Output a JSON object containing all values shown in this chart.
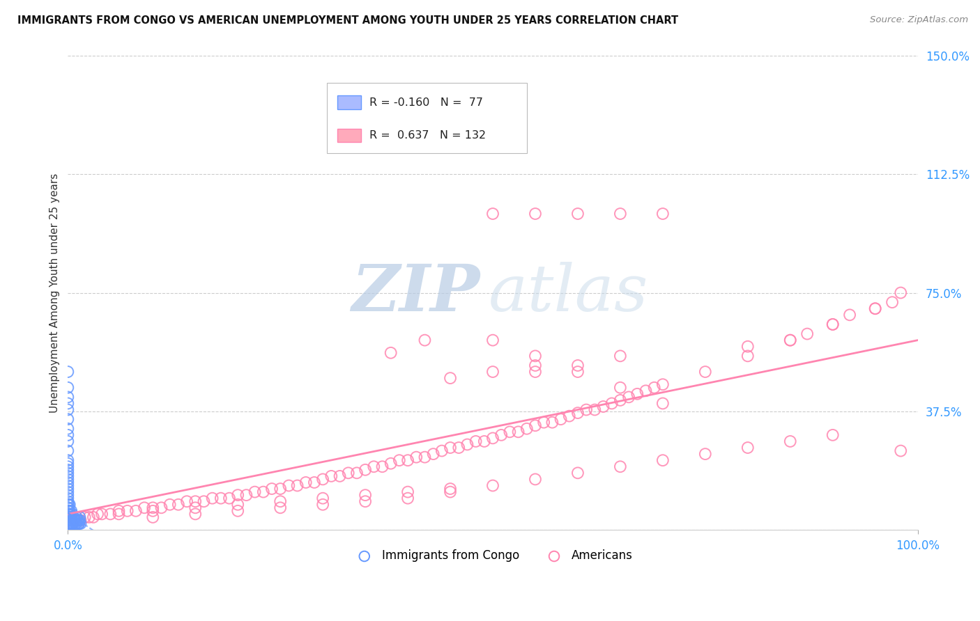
{
  "title": "IMMIGRANTS FROM CONGO VS AMERICAN UNEMPLOYMENT AMONG YOUTH UNDER 25 YEARS CORRELATION CHART",
  "source": "Source: ZipAtlas.com",
  "ylabel": "Unemployment Among Youth under 25 years",
  "xlim": [
    0.0,
    1.0
  ],
  "ylim": [
    0.0,
    1.5
  ],
  "xtick_vals": [
    0.0,
    1.0
  ],
  "xtick_labels": [
    "0.0%",
    "100.0%"
  ],
  "ytick_vals": [
    0.0,
    0.375,
    0.75,
    1.125,
    1.5
  ],
  "ytick_labels": [
    "",
    "37.5%",
    "75.0%",
    "112.5%",
    "150.0%"
  ],
  "grid_color": "#cccccc",
  "background_color": "#ffffff",
  "blue_color": "#6699ff",
  "pink_color": "#ff85b0",
  "blue_R": -0.16,
  "blue_N": 77,
  "pink_R": 0.637,
  "pink_N": 132,
  "blue_trend_x": [
    0.0,
    0.018
  ],
  "blue_trend_y": [
    0.053,
    0.02
  ],
  "pink_trend_x": [
    0.0,
    1.0
  ],
  "pink_trend_y": [
    0.05,
    0.6
  ],
  "blue_x": [
    0.0,
    0.0,
    0.0,
    0.0,
    0.0,
    0.0,
    0.0,
    0.0,
    0.0,
    0.0,
    0.0,
    0.0,
    0.0,
    0.0,
    0.0,
    0.0,
    0.0,
    0.0,
    0.0,
    0.0,
    0.0,
    0.0,
    0.0,
    0.0,
    0.0005,
    0.0005,
    0.001,
    0.001,
    0.001,
    0.001,
    0.0015,
    0.002,
    0.002,
    0.002,
    0.002,
    0.002,
    0.003,
    0.003,
    0.004,
    0.004,
    0.005,
    0.005,
    0.006,
    0.007,
    0.008,
    0.009,
    0.01,
    0.012,
    0.013,
    0.014,
    0.0,
    0.0,
    0.0,
    0.0,
    0.0,
    0.0,
    0.0,
    0.0,
    0.001,
    0.001,
    0.002,
    0.003,
    0.004,
    0.005,
    0.006,
    0.007,
    0.008,
    0.009,
    0.01,
    0.011,
    0.012,
    0.013,
    0.014,
    0.015,
    0.0,
    0.0,
    0.0
  ],
  "blue_y": [
    0.01,
    0.02,
    0.03,
    0.04,
    0.05,
    0.06,
    0.07,
    0.08,
    0.09,
    0.1,
    0.11,
    0.12,
    0.13,
    0.14,
    0.15,
    0.16,
    0.17,
    0.18,
    0.19,
    0.2,
    0.21,
    0.22,
    0.03,
    0.05,
    0.04,
    0.07,
    0.05,
    0.03,
    0.06,
    0.08,
    0.04,
    0.02,
    0.06,
    0.04,
    0.08,
    0.03,
    0.05,
    0.02,
    0.04,
    0.06,
    0.03,
    0.05,
    0.02,
    0.04,
    0.03,
    0.02,
    0.04,
    0.03,
    0.02,
    0.04,
    0.25,
    0.28,
    0.3,
    0.32,
    0.35,
    0.38,
    0.4,
    0.42,
    0.02,
    0.04,
    0.03,
    0.02,
    0.03,
    0.02,
    0.03,
    0.02,
    0.03,
    0.02,
    0.03,
    0.02,
    0.03,
    0.02,
    0.03,
    0.02,
    0.45,
    0.5,
    0.03
  ],
  "pink_x": [
    0.005,
    0.01,
    0.015,
    0.02,
    0.025,
    0.03,
    0.035,
    0.04,
    0.05,
    0.06,
    0.07,
    0.08,
    0.09,
    0.1,
    0.11,
    0.12,
    0.13,
    0.14,
    0.15,
    0.16,
    0.17,
    0.18,
    0.19,
    0.2,
    0.21,
    0.22,
    0.23,
    0.24,
    0.25,
    0.26,
    0.27,
    0.28,
    0.29,
    0.3,
    0.31,
    0.32,
    0.33,
    0.34,
    0.35,
    0.36,
    0.37,
    0.38,
    0.39,
    0.4,
    0.41,
    0.42,
    0.43,
    0.44,
    0.45,
    0.46,
    0.47,
    0.48,
    0.49,
    0.5,
    0.51,
    0.52,
    0.53,
    0.54,
    0.55,
    0.56,
    0.57,
    0.58,
    0.59,
    0.6,
    0.61,
    0.62,
    0.63,
    0.64,
    0.65,
    0.66,
    0.67,
    0.68,
    0.69,
    0.7,
    0.75,
    0.8,
    0.85,
    0.9,
    0.95,
    0.98,
    0.06,
    0.1,
    0.15,
    0.2,
    0.25,
    0.3,
    0.35,
    0.4,
    0.45,
    0.5,
    0.55,
    0.6,
    0.65,
    0.7,
    0.1,
    0.15,
    0.2,
    0.25,
    0.3,
    0.35,
    0.4,
    0.45,
    0.5,
    0.55,
    0.6,
    0.65,
    0.7,
    0.75,
    0.8,
    0.85,
    0.9,
    0.5,
    0.55,
    0.6,
    0.65,
    0.7,
    0.55,
    0.6,
    0.65,
    0.8,
    0.85,
    0.87,
    0.9,
    0.92,
    0.95,
    0.97,
    0.98,
    0.45,
    0.5,
    0.55,
    0.38,
    0.42
  ],
  "pink_y": [
    0.02,
    0.03,
    0.03,
    0.04,
    0.04,
    0.04,
    0.05,
    0.05,
    0.05,
    0.06,
    0.06,
    0.06,
    0.07,
    0.07,
    0.07,
    0.08,
    0.08,
    0.09,
    0.09,
    0.09,
    0.1,
    0.1,
    0.1,
    0.11,
    0.11,
    0.12,
    0.12,
    0.13,
    0.13,
    0.14,
    0.14,
    0.15,
    0.15,
    0.16,
    0.17,
    0.17,
    0.18,
    0.18,
    0.19,
    0.2,
    0.2,
    0.21,
    0.22,
    0.22,
    0.23,
    0.23,
    0.24,
    0.25,
    0.26,
    0.26,
    0.27,
    0.28,
    0.28,
    0.29,
    0.3,
    0.31,
    0.31,
    0.32,
    0.33,
    0.34,
    0.34,
    0.35,
    0.36,
    0.37,
    0.38,
    0.38,
    0.39,
    0.4,
    0.41,
    0.42,
    0.43,
    0.44,
    0.45,
    0.46,
    0.5,
    0.55,
    0.6,
    0.65,
    0.7,
    0.25,
    0.05,
    0.06,
    0.07,
    0.08,
    0.09,
    0.1,
    0.11,
    0.12,
    0.13,
    0.6,
    0.55,
    0.5,
    0.45,
    0.4,
    0.04,
    0.05,
    0.06,
    0.07,
    0.08,
    0.09,
    0.1,
    0.12,
    0.14,
    0.16,
    0.18,
    0.2,
    0.22,
    0.24,
    0.26,
    0.28,
    0.3,
    1.0,
    1.0,
    1.0,
    1.0,
    1.0,
    0.5,
    0.52,
    0.55,
    0.58,
    0.6,
    0.62,
    0.65,
    0.68,
    0.7,
    0.72,
    0.75,
    0.48,
    0.5,
    0.52,
    0.56,
    0.6
  ]
}
